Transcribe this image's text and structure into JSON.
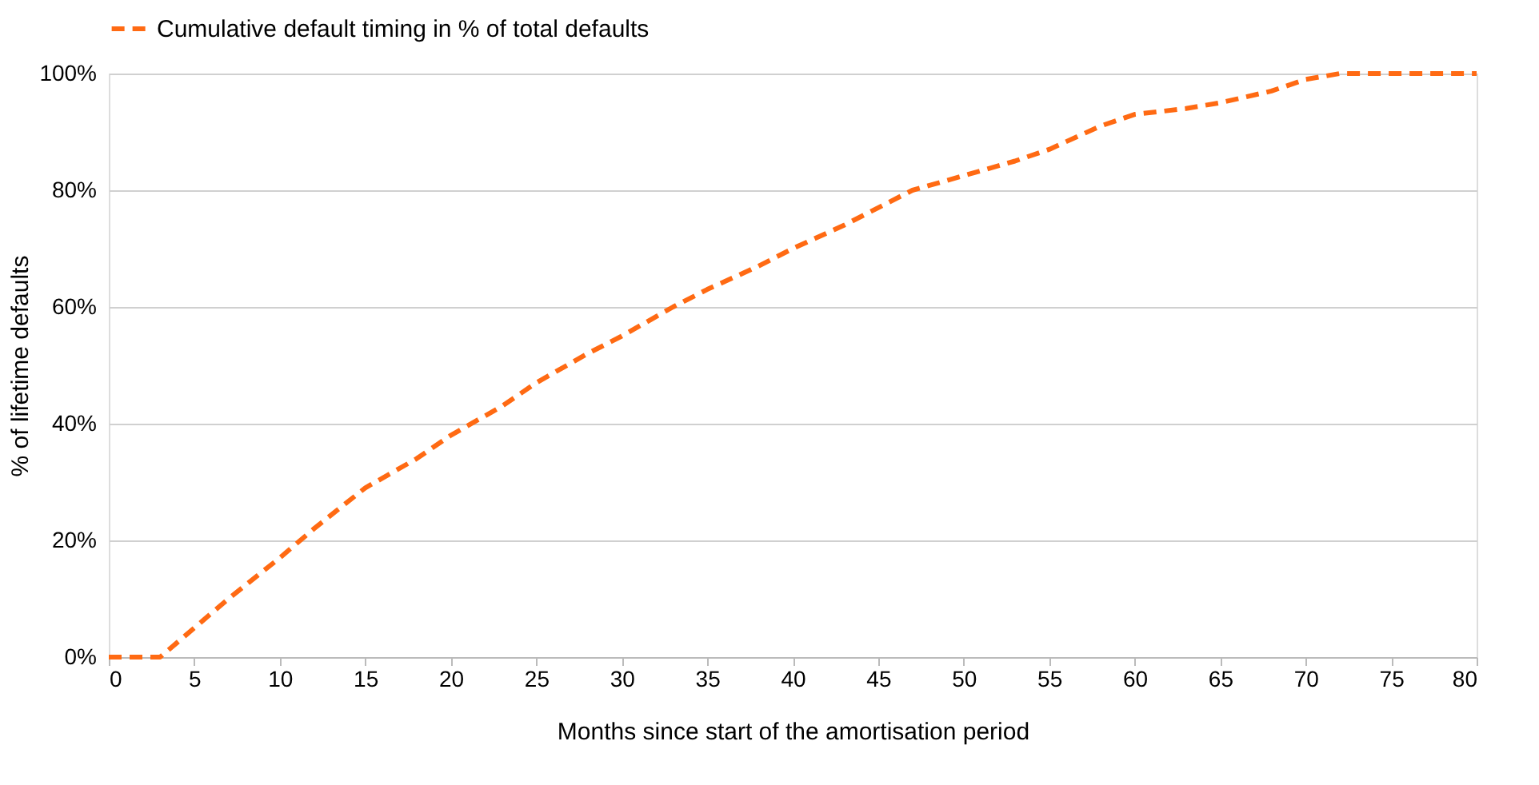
{
  "chart_data": {
    "type": "line",
    "xlabel": "Months since start of the amortisation period",
    "ylabel": "% of lifetime defaults",
    "x": [
      0,
      1,
      2,
      3,
      5,
      7,
      10,
      12,
      15,
      18,
      20,
      23,
      25,
      28,
      30,
      33,
      35,
      38,
      40,
      43,
      45,
      47,
      50,
      53,
      55,
      58,
      60,
      63,
      65,
      68,
      70,
      72,
      75,
      80
    ],
    "series": [
      {
        "name": "Cumulative default timing in % of total defaults",
        "color": "#ff6a13",
        "values": [
          0,
          0,
          0,
          0,
          5,
          10,
          17,
          22,
          29,
          34,
          38,
          43,
          47,
          52,
          55,
          60,
          63,
          67,
          70,
          74,
          77,
          80,
          82.5,
          85,
          87,
          91,
          93,
          94,
          95,
          97,
          99,
          100,
          100,
          100
        ]
      }
    ],
    "xlim": [
      0,
      80
    ],
    "xticks": [
      0,
      5,
      10,
      15,
      20,
      25,
      30,
      35,
      40,
      45,
      50,
      55,
      60,
      65,
      70,
      75,
      80
    ],
    "ylim": [
      0,
      100
    ],
    "yticks": [
      {
        "value": 0,
        "label": "0%"
      },
      {
        "value": 20,
        "label": "20%"
      },
      {
        "value": 40,
        "label": "40%"
      },
      {
        "value": 60,
        "label": "60%"
      },
      {
        "value": 80,
        "label": "80%"
      },
      {
        "value": 100,
        "label": "100%"
      }
    ],
    "grid": "y",
    "legend": "top",
    "line_style": "dashed",
    "marker": "none"
  }
}
